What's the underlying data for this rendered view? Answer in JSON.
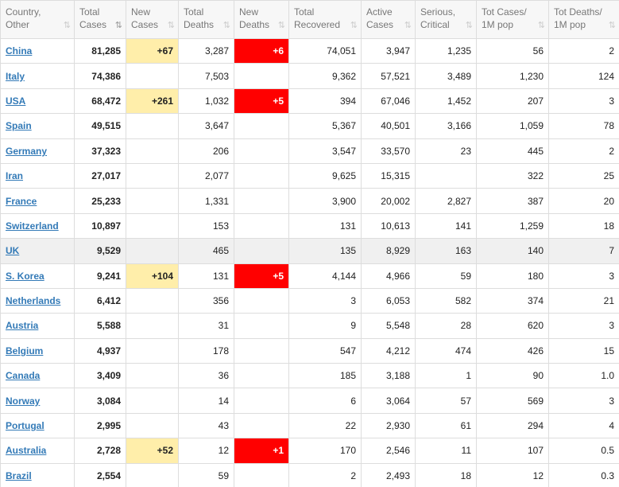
{
  "headers": [
    {
      "line1": "Country,",
      "line2": "Other",
      "sort_active": false
    },
    {
      "line1": "Total",
      "line2": "Cases",
      "sort_active": true
    },
    {
      "line1": "New",
      "line2": "Cases",
      "sort_active": false
    },
    {
      "line1": "Total",
      "line2": "Deaths",
      "sort_active": false
    },
    {
      "line1": "New",
      "line2": "Deaths",
      "sort_active": false
    },
    {
      "line1": "Total",
      "line2": "Recovered",
      "sort_active": false
    },
    {
      "line1": "Active",
      "line2": "Cases",
      "sort_active": false
    },
    {
      "line1": "Serious,",
      "line2": "Critical",
      "sort_active": false
    },
    {
      "line1": "Tot Cases/",
      "line2": "1M pop",
      "sort_active": false
    },
    {
      "line1": "Tot Deaths/",
      "line2": "1M pop",
      "sort_active": false
    }
  ],
  "sort_icon_glyph": "⇅",
  "sort_icon_active_glyph": "⇅",
  "colors": {
    "new_cases_bg": "#ffeeaa",
    "new_deaths_bg": "#ff0000",
    "link": "#337ab7",
    "highlight_row": "#f0f0f0"
  },
  "rows": [
    {
      "country": "China",
      "total_cases": "81,285",
      "new_cases": "+67",
      "total_deaths": "3,287",
      "new_deaths": "+6",
      "total_recovered": "74,051",
      "active_cases": "3,947",
      "serious": "1,235",
      "cases_per_1m": "56",
      "deaths_per_1m": "2",
      "highlight": false
    },
    {
      "country": "Italy",
      "total_cases": "74,386",
      "new_cases": "",
      "total_deaths": "7,503",
      "new_deaths": "",
      "total_recovered": "9,362",
      "active_cases": "57,521",
      "serious": "3,489",
      "cases_per_1m": "1,230",
      "deaths_per_1m": "124",
      "highlight": false
    },
    {
      "country": "USA",
      "total_cases": "68,472",
      "new_cases": "+261",
      "total_deaths": "1,032",
      "new_deaths": "+5",
      "total_recovered": "394",
      "active_cases": "67,046",
      "serious": "1,452",
      "cases_per_1m": "207",
      "deaths_per_1m": "3",
      "highlight": false
    },
    {
      "country": "Spain",
      "total_cases": "49,515",
      "new_cases": "",
      "total_deaths": "3,647",
      "new_deaths": "",
      "total_recovered": "5,367",
      "active_cases": "40,501",
      "serious": "3,166",
      "cases_per_1m": "1,059",
      "deaths_per_1m": "78",
      "highlight": false
    },
    {
      "country": "Germany",
      "total_cases": "37,323",
      "new_cases": "",
      "total_deaths": "206",
      "new_deaths": "",
      "total_recovered": "3,547",
      "active_cases": "33,570",
      "serious": "23",
      "cases_per_1m": "445",
      "deaths_per_1m": "2",
      "highlight": false
    },
    {
      "country": "Iran",
      "total_cases": "27,017",
      "new_cases": "",
      "total_deaths": "2,077",
      "new_deaths": "",
      "total_recovered": "9,625",
      "active_cases": "15,315",
      "serious": "",
      "cases_per_1m": "322",
      "deaths_per_1m": "25",
      "highlight": false
    },
    {
      "country": "France",
      "total_cases": "25,233",
      "new_cases": "",
      "total_deaths": "1,331",
      "new_deaths": "",
      "total_recovered": "3,900",
      "active_cases": "20,002",
      "serious": "2,827",
      "cases_per_1m": "387",
      "deaths_per_1m": "20",
      "highlight": false
    },
    {
      "country": "Switzerland",
      "total_cases": "10,897",
      "new_cases": "",
      "total_deaths": "153",
      "new_deaths": "",
      "total_recovered": "131",
      "active_cases": "10,613",
      "serious": "141",
      "cases_per_1m": "1,259",
      "deaths_per_1m": "18",
      "highlight": false
    },
    {
      "country": "UK",
      "total_cases": "9,529",
      "new_cases": "",
      "total_deaths": "465",
      "new_deaths": "",
      "total_recovered": "135",
      "active_cases": "8,929",
      "serious": "163",
      "cases_per_1m": "140",
      "deaths_per_1m": "7",
      "highlight": true
    },
    {
      "country": "S. Korea",
      "total_cases": "9,241",
      "new_cases": "+104",
      "total_deaths": "131",
      "new_deaths": "+5",
      "total_recovered": "4,144",
      "active_cases": "4,966",
      "serious": "59",
      "cases_per_1m": "180",
      "deaths_per_1m": "3",
      "highlight": false
    },
    {
      "country": "Netherlands",
      "total_cases": "6,412",
      "new_cases": "",
      "total_deaths": "356",
      "new_deaths": "",
      "total_recovered": "3",
      "active_cases": "6,053",
      "serious": "582",
      "cases_per_1m": "374",
      "deaths_per_1m": "21",
      "highlight": false
    },
    {
      "country": "Austria",
      "total_cases": "5,588",
      "new_cases": "",
      "total_deaths": "31",
      "new_deaths": "",
      "total_recovered": "9",
      "active_cases": "5,548",
      "serious": "28",
      "cases_per_1m": "620",
      "deaths_per_1m": "3",
      "highlight": false
    },
    {
      "country": "Belgium",
      "total_cases": "4,937",
      "new_cases": "",
      "total_deaths": "178",
      "new_deaths": "",
      "total_recovered": "547",
      "active_cases": "4,212",
      "serious": "474",
      "cases_per_1m": "426",
      "deaths_per_1m": "15",
      "highlight": false
    },
    {
      "country": "Canada",
      "total_cases": "3,409",
      "new_cases": "",
      "total_deaths": "36",
      "new_deaths": "",
      "total_recovered": "185",
      "active_cases": "3,188",
      "serious": "1",
      "cases_per_1m": "90",
      "deaths_per_1m": "1.0",
      "highlight": false
    },
    {
      "country": "Norway",
      "total_cases": "3,084",
      "new_cases": "",
      "total_deaths": "14",
      "new_deaths": "",
      "total_recovered": "6",
      "active_cases": "3,064",
      "serious": "57",
      "cases_per_1m": "569",
      "deaths_per_1m": "3",
      "highlight": false
    },
    {
      "country": "Portugal",
      "total_cases": "2,995",
      "new_cases": "",
      "total_deaths": "43",
      "new_deaths": "",
      "total_recovered": "22",
      "active_cases": "2,930",
      "serious": "61",
      "cases_per_1m": "294",
      "deaths_per_1m": "4",
      "highlight": false
    },
    {
      "country": "Australia",
      "total_cases": "2,728",
      "new_cases": "+52",
      "total_deaths": "12",
      "new_deaths": "+1",
      "total_recovered": "170",
      "active_cases": "2,546",
      "serious": "11",
      "cases_per_1m": "107",
      "deaths_per_1m": "0.5",
      "highlight": false
    },
    {
      "country": "Brazil",
      "total_cases": "2,554",
      "new_cases": "",
      "total_deaths": "59",
      "new_deaths": "",
      "total_recovered": "2",
      "active_cases": "2,493",
      "serious": "18",
      "cases_per_1m": "12",
      "deaths_per_1m": "0.3",
      "highlight": false
    }
  ]
}
